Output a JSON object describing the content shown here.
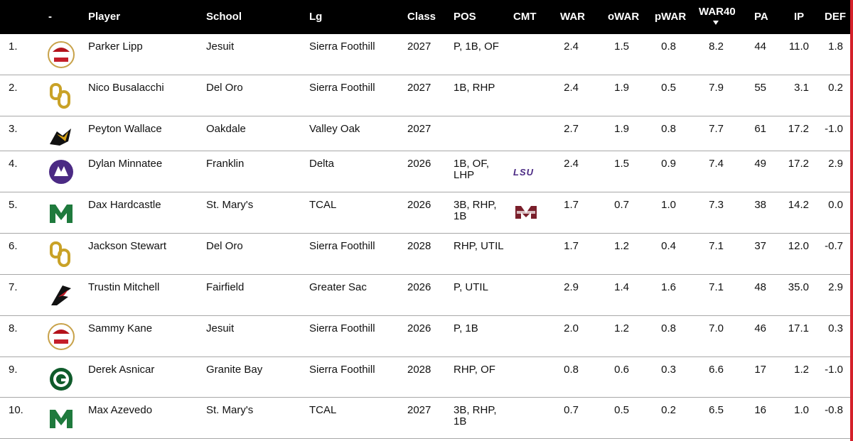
{
  "table": {
    "columns": [
      "-",
      "Player",
      "School",
      "Lg",
      "Class",
      "POS",
      "CMT",
      "WAR",
      "oWAR",
      "pWAR",
      "WAR40",
      "PA",
      "IP",
      "DEF"
    ],
    "rows": [
      {
        "rank": "1.",
        "player": "Parker Lipp",
        "school": "Jesuit",
        "lg": "Sierra Foothill",
        "class": "2027",
        "pos": "P, 1B, OF",
        "war": "2.4",
        "owar": "1.5",
        "pwar": "0.8",
        "war40": "8.2",
        "pa": "44",
        "ip": "11.0",
        "def": "1.8"
      },
      {
        "rank": "2.",
        "player": "Nico Busalacchi",
        "school": "Del Oro",
        "lg": "Sierra Foothill",
        "class": "2027",
        "pos": "1B, RHP",
        "war": "2.4",
        "owar": "1.9",
        "pwar": "0.5",
        "war40": "7.9",
        "pa": "55",
        "ip": "3.1",
        "def": "0.2"
      },
      {
        "rank": "3.",
        "player": "Peyton Wallace",
        "school": "Oakdale",
        "lg": "Valley Oak",
        "class": "2027",
        "war": "2.7",
        "owar": "1.9",
        "pwar": "0.8",
        "war40": "7.7",
        "pa": "61",
        "ip": "17.2",
        "def": "-1.0"
      },
      {
        "rank": "4.",
        "player": "Dylan Minnatee",
        "school": "Franklin",
        "lg": "Delta",
        "class": "2026",
        "pos": "1B, OF, LHP",
        "cmt": "LSU",
        "war": "2.4",
        "owar": "1.5",
        "pwar": "0.9",
        "war40": "7.4",
        "pa": "49",
        "ip": "17.2",
        "def": "2.9"
      },
      {
        "rank": "5.",
        "player": "Dax Hardcastle",
        "school": "St. Mary's",
        "lg": "TCAL",
        "class": "2026",
        "pos": "3B, RHP, 1B",
        "war": "1.7",
        "owar": "0.7",
        "pwar": "1.0",
        "war40": "7.3",
        "pa": "38",
        "ip": "14.2",
        "def": "0.0"
      },
      {
        "rank": "6.",
        "player": "Jackson Stewart",
        "school": "Del Oro",
        "lg": "Sierra Foothill",
        "class": "2028",
        "pos": "RHP, UTIL",
        "war": "1.7",
        "owar": "1.2",
        "pwar": "0.4",
        "war40": "7.1",
        "pa": "37",
        "ip": "12.0",
        "def": "-0.7"
      },
      {
        "rank": "7.",
        "player": "Trustin Mitchell",
        "school": "Fairfield",
        "lg": "Greater Sac",
        "class": "2026",
        "pos": "P, UTIL",
        "war": "2.9",
        "owar": "1.4",
        "pwar": "1.6",
        "war40": "7.1",
        "pa": "48",
        "ip": "35.0",
        "def": "2.9"
      },
      {
        "rank": "8.",
        "player": "Sammy Kane",
        "school": "Jesuit",
        "lg": "Sierra Foothill",
        "class": "2026",
        "pos": "P, 1B",
        "war": "2.0",
        "owar": "1.2",
        "pwar": "0.8",
        "war40": "7.0",
        "pa": "46",
        "ip": "17.1",
        "def": "0.3"
      },
      {
        "rank": "9.",
        "player": "Derek Asnicar",
        "school": "Granite Bay",
        "lg": "Sierra Foothill",
        "class": "2028",
        "pos": "RHP, OF",
        "war": "0.8",
        "owar": "0.6",
        "pwar": "0.3",
        "war40": "6.6",
        "pa": "17",
        "ip": "1.2",
        "def": "-1.0"
      },
      {
        "rank": "10.",
        "player": "Max Azevedo",
        "school": "St. Mary's",
        "lg": "TCAL",
        "class": "2027",
        "pos": "3B, RHP, 1B",
        "war": "0.7",
        "owar": "0.5",
        "pwar": "0.2",
        "war40": "6.5",
        "pa": "16",
        "ip": "1.0",
        "def": "-0.8"
      }
    ]
  }
}
